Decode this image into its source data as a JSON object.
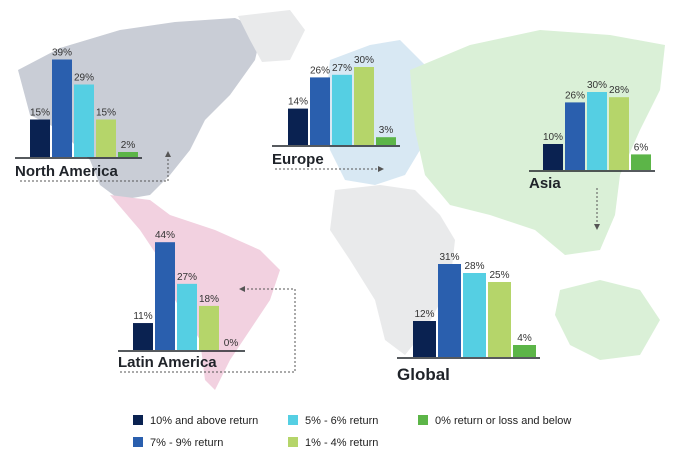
{
  "colors": {
    "s1": "#0a2251",
    "s2": "#2a5fae",
    "s3": "#55cfe3",
    "s4": "#b5d56a",
    "s5": "#5cb548",
    "map_na": "#c9cdd6",
    "map_eu": "#d8e8f3",
    "map_asia": "#daf0d7",
    "map_la": "#f2d1e0",
    "map_other": "#e9eaeb"
  },
  "legend": [
    {
      "label": "10% and above return",
      "color_key": "s1"
    },
    {
      "label": "7% - 9% return",
      "color_key": "s2"
    },
    {
      "label": "5% - 6% return",
      "color_key": "s3"
    },
    {
      "label": "1% - 4% return",
      "color_key": "s4"
    },
    {
      "label": "0% return or loss and below",
      "color_key": "s5"
    }
  ],
  "chart_data": [
    {
      "type": "bar",
      "title": "North America",
      "categories": [
        "10% and above return",
        "7% - 9% return",
        "5% - 6% return",
        "1% - 4% return",
        "0% return or loss and below"
      ],
      "values": [
        15,
        39,
        29,
        15,
        2
      ],
      "value_labels": [
        "15%",
        "39%",
        "29%",
        "15%",
        "2%"
      ]
    },
    {
      "type": "bar",
      "title": "Europe",
      "categories": [
        "10% and above return",
        "7% - 9% return",
        "5% - 6% return",
        "1% - 4% return",
        "0% return or loss and below"
      ],
      "values": [
        14,
        26,
        27,
        30,
        3
      ],
      "value_labels": [
        "14%",
        "26%",
        "27%",
        "30%",
        "3%"
      ]
    },
    {
      "type": "bar",
      "title": "Asia",
      "categories": [
        "10% and above return",
        "7% - 9% return",
        "5% - 6% return",
        "1% - 4% return",
        "0% return or loss and below"
      ],
      "values": [
        10,
        26,
        30,
        28,
        6
      ],
      "value_labels": [
        "10%",
        "26%",
        "30%",
        "28%",
        "6%"
      ]
    },
    {
      "type": "bar",
      "title": "Latin America",
      "categories": [
        "10% and above return",
        "7% - 9% return",
        "5% - 6% return",
        "1% - 4% return",
        "0% return or loss and below"
      ],
      "values": [
        11,
        44,
        27,
        18,
        0
      ],
      "value_labels": [
        "11%",
        "44%",
        "27%",
        "18%",
        "0%"
      ]
    },
    {
      "type": "bar",
      "title": "Global",
      "categories": [
        "10% and above return",
        "7% - 9% return",
        "5% - 6% return",
        "1% - 4% return",
        "0% return or loss and below"
      ],
      "values": [
        12,
        31,
        28,
        25,
        4
      ],
      "value_labels": [
        "12%",
        "31%",
        "28%",
        "25%",
        "4%"
      ]
    }
  ]
}
